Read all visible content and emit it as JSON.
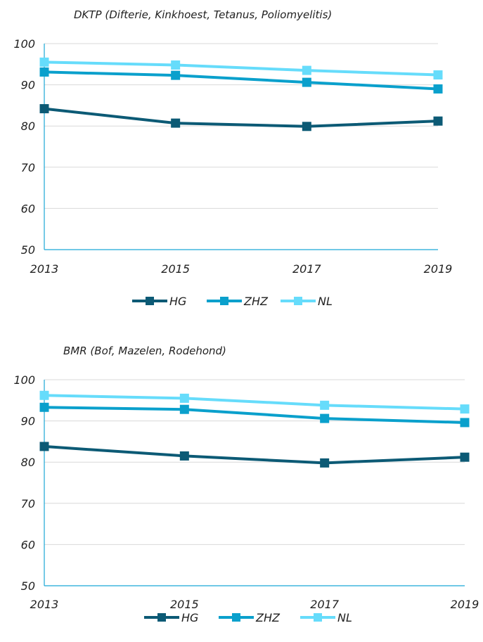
{
  "colors": {
    "HG": "#0c5a75",
    "ZHZ": "#0aa0cc",
    "NL": "#66dcfb",
    "grid": "#d9d9d9",
    "axis": "#1ba6d6"
  },
  "chart_data": [
    {
      "type": "line",
      "title": "DKTP (Difterie, Kinkhoest, Tetanus, Poliomyelitis)",
      "categories": [
        "2013",
        "2015",
        "2017",
        "2019"
      ],
      "ylim": [
        50,
        100
      ],
      "yticks": [
        "50",
        "60",
        "70",
        "80",
        "90",
        "100"
      ],
      "legend_position": "bottom",
      "grid": true,
      "series": [
        {
          "name": "HG",
          "values": [
            84.2,
            80.7,
            79.9,
            81.2
          ]
        },
        {
          "name": "ZHZ",
          "values": [
            93.1,
            92.3,
            90.6,
            89.0
          ]
        },
        {
          "name": "NL",
          "values": [
            95.5,
            94.8,
            93.5,
            92.4
          ]
        }
      ]
    },
    {
      "type": "line",
      "title": "BMR (Bof, Mazelen, Rodehond)",
      "categories": [
        "2013",
        "2015",
        "2017",
        "2019"
      ],
      "ylim": [
        50,
        100
      ],
      "yticks": [
        "50",
        "60",
        "70",
        "80",
        "90",
        "100"
      ],
      "legend_position": "bottom",
      "grid": true,
      "series": [
        {
          "name": "HG",
          "values": [
            83.8,
            81.5,
            79.8,
            81.2
          ]
        },
        {
          "name": "ZHZ",
          "values": [
            93.3,
            92.8,
            90.6,
            89.6
          ]
        },
        {
          "name": "NL",
          "values": [
            96.2,
            95.5,
            93.8,
            92.9
          ]
        }
      ]
    }
  ]
}
